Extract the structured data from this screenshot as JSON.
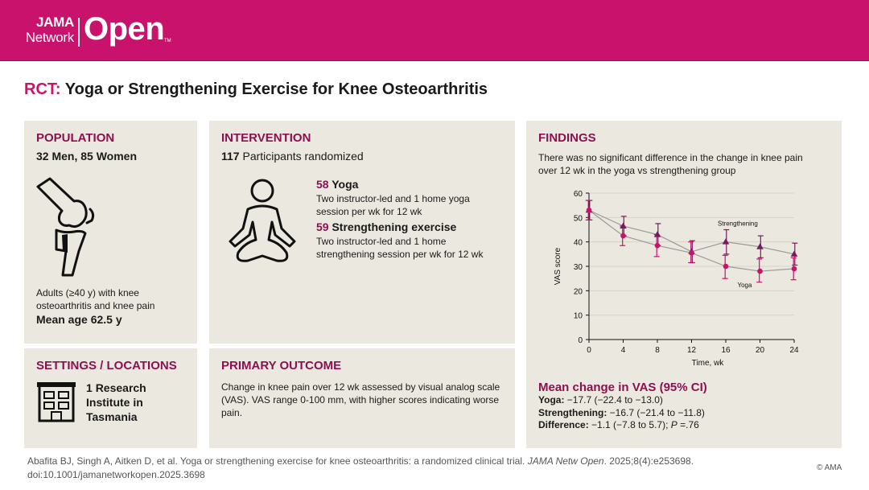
{
  "header": {
    "logo_jama": "JAMA",
    "logo_network": "Network",
    "logo_open": "Open",
    "logo_tm": "TM"
  },
  "title": {
    "prefix": "RCT:",
    "text": "Yoga or Strengthening Exercise for Knee Osteoarthritis"
  },
  "population": {
    "heading": "POPULATION",
    "counts": "32 Men, 85 Women",
    "description": "Adults (≥40 y) with knee osteoarthritis and knee pain",
    "mean_age": "Mean age 62.5 y",
    "icon": "knee-joint-icon"
  },
  "intervention": {
    "heading": "INTERVENTION",
    "randomized_count": "117",
    "randomized_label": "Participants randomized",
    "icon": "meditation-person-icon",
    "arms": [
      {
        "count": "58",
        "name": "Yoga",
        "desc": "Two instructor-led and 1 home yoga session per wk for 12 wk"
      },
      {
        "count": "59",
        "name": "Strengthening exercise",
        "desc": "Two instructor-led and 1 home strengthening session per wk for 12 wk"
      }
    ]
  },
  "settings": {
    "heading": "SETTINGS / LOCATIONS",
    "count": "1",
    "text_a": "Research",
    "text_b": "Institute in",
    "text_c": "Tasmania",
    "icon": "building-icon"
  },
  "outcome": {
    "heading": "PRIMARY OUTCOME",
    "text": "Change in knee pain over 12 wk assessed by visual analog scale (VAS). VAS range 0-100 mm, with higher scores indicating worse pain."
  },
  "findings": {
    "heading": "FINDINGS",
    "summary": "There was no significant difference in the change in knee pain over 12 wk in the yoga vs strengthening group",
    "mean_change_heading": "Mean change in VAS (95% CI)",
    "results": [
      {
        "label": "Yoga:",
        "value": "−17.7 (−22.4 to −13.0)"
      },
      {
        "label": "Strengthening:",
        "value": "−16.7 (−21.4 to −11.8)"
      },
      {
        "label": "Difference:",
        "value": "−1.1 (−7.8 to 5.7);",
        "p_label": "P",
        "p_value": " =.76"
      }
    ]
  },
  "chart_data": {
    "type": "line",
    "xlabel": "Time, wk",
    "ylabel": "VAS score",
    "x": [
      0,
      4,
      8,
      12,
      16,
      20,
      24
    ],
    "xlim": [
      0,
      24
    ],
    "ylim": [
      0,
      60
    ],
    "yticks": [
      0,
      10,
      20,
      30,
      40,
      50,
      60
    ],
    "grid": "horizontal",
    "colors": {
      "Strengthening": "#7a1a5e",
      "Yoga": "#c8126b",
      "line": "#9a9a9a",
      "grid": "#d8d4ca"
    },
    "series": [
      {
        "name": "Strengthening",
        "marker": "triangle",
        "values": [
          53,
          46.5,
          43,
          36,
          40,
          38,
          35
        ],
        "ci_low": [
          49,
          42.5,
          38.5,
          31.5,
          35,
          33.5,
          30.5
        ],
        "ci_high": [
          57,
          50.5,
          47.5,
          40.5,
          45,
          42.5,
          39.5
        ]
      },
      {
        "name": "Yoga",
        "marker": "circle",
        "values": [
          53,
          42.5,
          38.5,
          35.5,
          30,
          28,
          29
        ],
        "ci_low": [
          49,
          38.5,
          34,
          31.5,
          25,
          23.5,
          24.5
        ],
        "ci_high": [
          57,
          46.5,
          43,
          40,
          34.5,
          33,
          33.5
        ]
      }
    ]
  },
  "citation": {
    "text_a": "Abafita BJ, Singh A, Aitken D, et al. Yoga or strengthening exercise for knee osteoarthritis: a randomized clinical trial. ",
    "journal": "JAMA Netw Open",
    "text_b": ". 2025;8(4):e253698.",
    "doi": "doi:10.1001/jamanetworkopen.2025.3698",
    "copyright": "© AMA"
  }
}
